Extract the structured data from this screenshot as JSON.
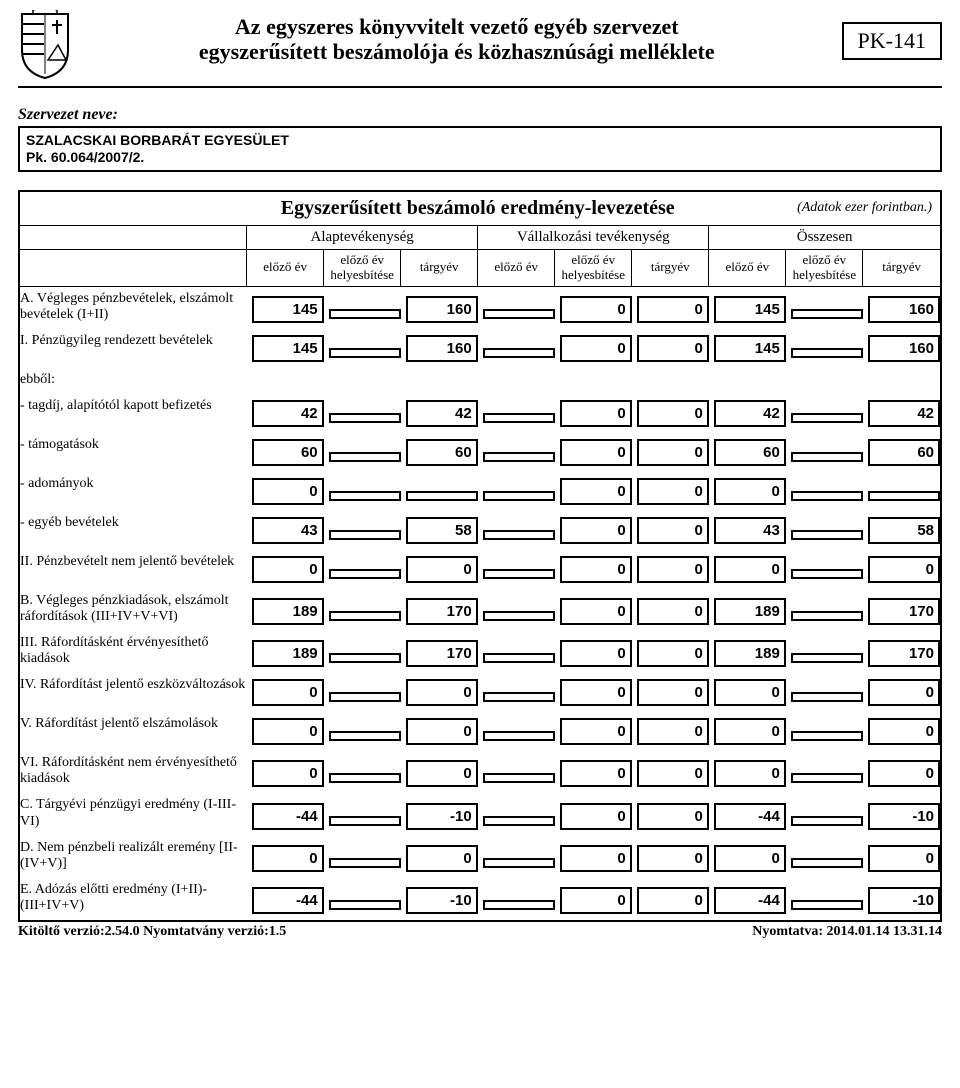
{
  "header": {
    "title_line1": "Az egyszeres könyvvitelt vezető egyéb szervezet",
    "title_line2": "egyszerűsített beszámolója és közhasznúsági melléklete",
    "pk": "PK-141"
  },
  "org": {
    "label": "Szervezet neve:",
    "name_line1": "SZALACSKAI BORBARÁT EGYESÜLET",
    "name_line2": "Pk. 60.064/2007/2."
  },
  "table": {
    "title": "Egyszerűsített beszámoló eredmény-levezetése",
    "units": "(Adatok ezer forintban.)",
    "group_alap": "Alaptevékenység",
    "group_vall": "Vállalkozási tevékenység",
    "group_ossz": "Összesen",
    "col_elozo": "előző év",
    "col_helyes1": "előző év",
    "col_helyes2": "helyesbítése",
    "col_targy": "tárgyév"
  },
  "rows": [
    {
      "label": "A. Végleges pénzbevételek, elszámolt bevételek (I+II)",
      "v": [
        "145",
        "",
        "160",
        "",
        "0",
        "0",
        "145",
        "",
        "160"
      ]
    },
    {
      "label": "I. Pénzügyileg rendezett bevételek",
      "v": [
        "145",
        "",
        "160",
        "",
        "0",
        "0",
        "145",
        "",
        "160"
      ]
    },
    {
      "label": "ebből:",
      "v": [
        null,
        null,
        null,
        null,
        null,
        null,
        null,
        null,
        null
      ],
      "noBox": true
    },
    {
      "label": "- tagdíj, alapítótól kapott befizetés",
      "v": [
        "42",
        "",
        "42",
        "",
        "0",
        "0",
        "42",
        "",
        "42"
      ]
    },
    {
      "label": "- támogatások",
      "v": [
        "60",
        "",
        "60",
        "",
        "0",
        "0",
        "60",
        "",
        "60"
      ]
    },
    {
      "label": "- adományok",
      "v": [
        "0",
        "",
        "",
        "",
        "0",
        "0",
        "0",
        "",
        ""
      ]
    },
    {
      "label": "- egyéb bevételek",
      "v": [
        "43",
        "",
        "58",
        "",
        "0",
        "0",
        "43",
        "",
        "58"
      ]
    },
    {
      "label": "II. Pénzbevételt nem jelentő bevételek",
      "v": [
        "0",
        "",
        "0",
        "",
        "0",
        "0",
        "0",
        "",
        "0"
      ]
    },
    {
      "label": "B. Végleges pénzkiadások, elszámolt ráfordítások (III+IV+V+VI)",
      "v": [
        "189",
        "",
        "170",
        "",
        "0",
        "0",
        "189",
        "",
        "170"
      ]
    },
    {
      "label": "III. Ráfordításként érvényesíthető kiadások",
      "v": [
        "189",
        "",
        "170",
        "",
        "0",
        "0",
        "189",
        "",
        "170"
      ]
    },
    {
      "label": "IV. Ráfordítást jelentő eszközváltozások",
      "v": [
        "0",
        "",
        "0",
        "",
        "0",
        "0",
        "0",
        "",
        "0"
      ]
    },
    {
      "label": "V. Ráfordítást jelentő elszámolások",
      "v": [
        "0",
        "",
        "0",
        "",
        "0",
        "0",
        "0",
        "",
        "0"
      ]
    },
    {
      "label": "VI. Ráfordításként nem érvényesíthető kiadások",
      "v": [
        "0",
        "",
        "0",
        "",
        "0",
        "0",
        "0",
        "",
        "0"
      ]
    },
    {
      "label": "C. Tárgyévi pénzügyi eredmény (I-III-VI)",
      "v": [
        "-44",
        "",
        "-10",
        "",
        "0",
        "0",
        "-44",
        "",
        "-10"
      ]
    },
    {
      "label": "D. Nem pénzbeli realizált eremény [II-(IV+V)]",
      "v": [
        "0",
        "",
        "0",
        "",
        "0",
        "0",
        "0",
        "",
        "0"
      ]
    },
    {
      "label": "E. Adózás előtti eredmény (I+II)-(III+IV+V)",
      "v": [
        "-44",
        "",
        "-10",
        "",
        "0",
        "0",
        "-44",
        "",
        "-10"
      ]
    }
  ],
  "footer": {
    "left": "Kitöltő verzió:2.54.0 Nyomtatvány verzió:1.5",
    "right": "Nyomtatva: 2014.01.14 13.31.14"
  }
}
